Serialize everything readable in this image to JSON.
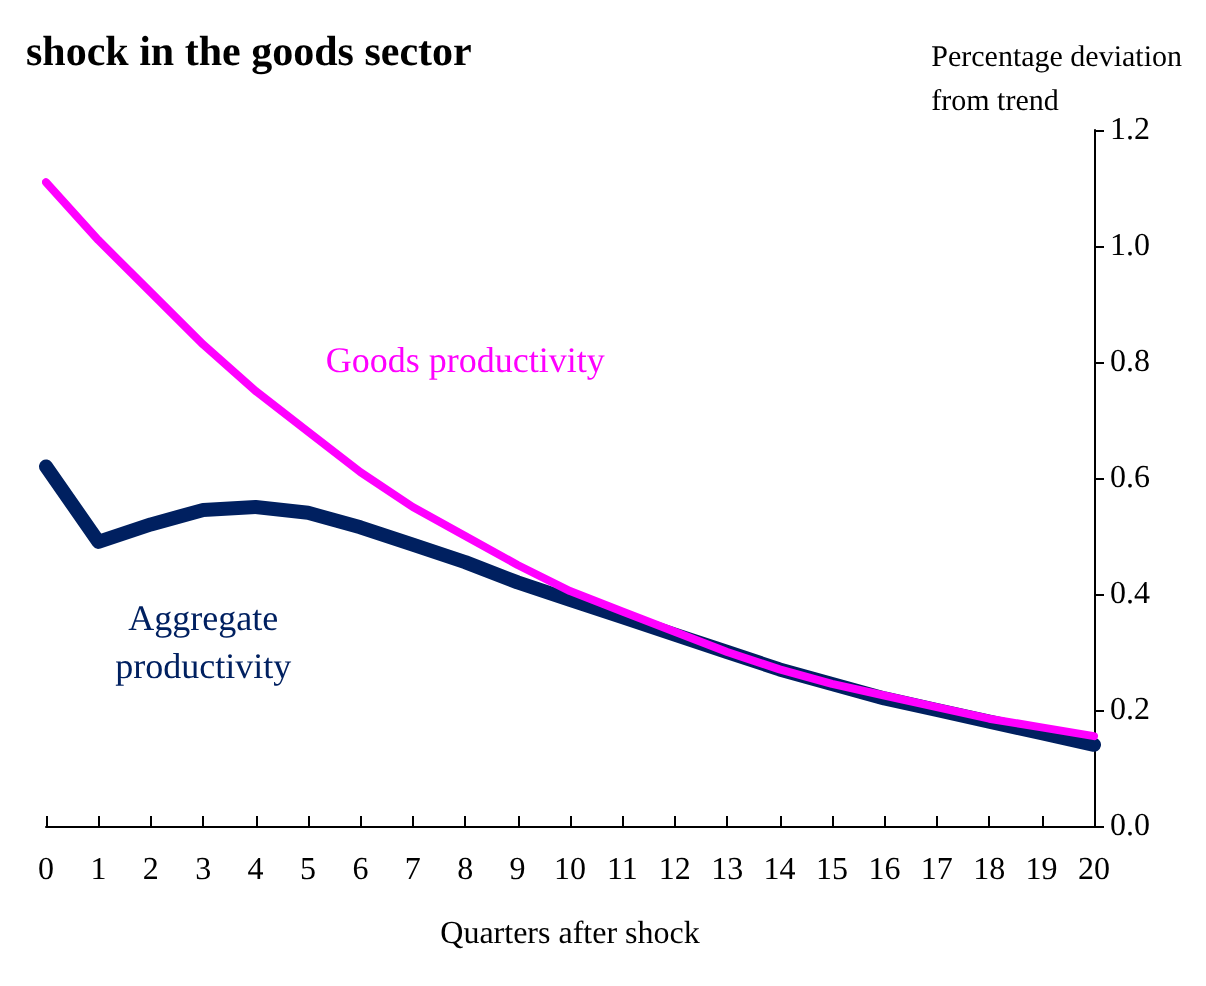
{
  "chart_data": {
    "type": "line",
    "title": "shock in the goods sector",
    "xlabel": "Quarters after shock",
    "ylabel": "Percentage deviation from trend",
    "x": [
      0,
      1,
      2,
      3,
      4,
      5,
      6,
      7,
      8,
      9,
      10,
      11,
      12,
      13,
      14,
      15,
      16,
      17,
      18,
      19,
      20
    ],
    "series": [
      {
        "name": "Goods productivity",
        "color": "#ff00ff",
        "values": [
          1.11,
          1.01,
          0.92,
          0.83,
          0.75,
          0.68,
          0.61,
          0.55,
          0.5,
          0.45,
          0.405,
          0.37,
          0.335,
          0.3,
          0.27,
          0.245,
          0.225,
          0.205,
          0.185,
          0.17,
          0.155
        ]
      },
      {
        "name": "Aggregate productivity",
        "color": "#002060",
        "values": [
          0.62,
          0.49,
          0.52,
          0.545,
          0.55,
          0.54,
          0.515,
          0.485,
          0.455,
          0.42,
          0.39,
          0.36,
          0.33,
          0.3,
          0.27,
          0.245,
          0.22,
          0.2,
          0.18,
          0.16,
          0.14
        ]
      }
    ],
    "xlim": [
      0,
      20
    ],
    "xticks": [
      0,
      1,
      2,
      3,
      4,
      5,
      6,
      7,
      8,
      9,
      10,
      11,
      12,
      13,
      14,
      15,
      16,
      17,
      18,
      19,
      20
    ],
    "ylim": [
      0,
      1.2
    ],
    "yticks": [
      {
        "value": 0,
        "label": "0.0"
      },
      {
        "value": 0.2,
        "label": "0.2"
      },
      {
        "value": 0.4,
        "label": "0.4"
      },
      {
        "value": 0.6,
        "label": "0.6"
      },
      {
        "value": 0.8,
        "label": "0.8"
      },
      {
        "value": 1,
        "label": "1.0"
      },
      {
        "value": 1.2,
        "label": "1.2"
      }
    ],
    "grid": false,
    "legend": false,
    "marker": "none",
    "line_style": "solid"
  }
}
